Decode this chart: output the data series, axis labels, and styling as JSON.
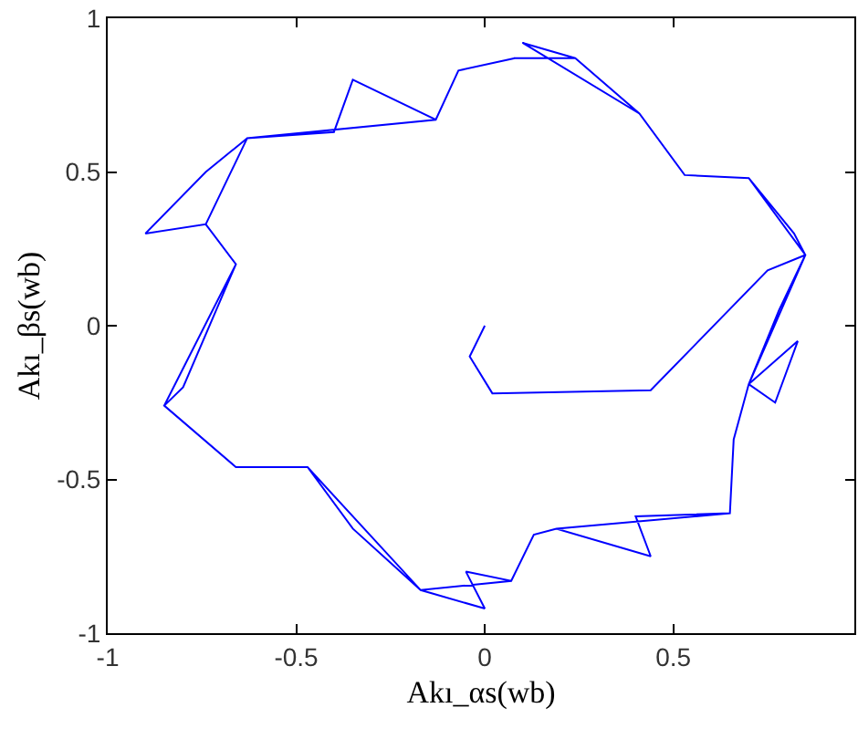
{
  "chart_data": {
    "type": "line",
    "xlabel": "Akı_αs(wb)",
    "ylabel": "Akı_βs(wb)",
    "xlim": [
      -1,
      0.98
    ],
    "ylim": [
      -1,
      1
    ],
    "xticks": [
      -1,
      -0.5,
      0,
      0.5
    ],
    "yticks": [
      -1,
      -0.5,
      0,
      0.5,
      1
    ],
    "marker": "none",
    "line_style": "solid",
    "series": [
      {
        "color": "#0000ff",
        "x": [
          0,
          -0.04,
          0.02,
          0.44,
          0.75,
          0.85,
          0.7,
          0.66,
          0.65,
          0.19,
          0.13,
          0.07,
          -0.17,
          -0.47,
          -0.66,
          -0.85,
          -0.66,
          -0.74,
          -0.63,
          -0.13,
          -0.07,
          0.08,
          0.24,
          0.41,
          0.53,
          0.7,
          0.85,
          0.7,
          0.77,
          0.83,
          0.7,
          0.66,
          0.65,
          0.4,
          0.44,
          0.19,
          0.13,
          0.07,
          -0.05,
          0.0,
          -0.17,
          -0.35,
          -0.47,
          -0.66,
          -0.85,
          -0.8,
          -0.66,
          -0.74,
          -0.9,
          -0.74,
          -0.63,
          -0.4,
          -0.35,
          -0.13,
          -0.07,
          0.08,
          0.24,
          0.1,
          0.41,
          0.53,
          0.7,
          0.82,
          0.85,
          0.7,
          0.66,
          0.65,
          0.19,
          0.13,
          0.07,
          -0.17,
          -0.47,
          -0.66,
          -0.85,
          -0.66,
          -0.74,
          -0.63,
          -0.13,
          -0.07,
          0.08,
          0.24,
          0.41,
          0.53,
          0.7,
          0.85,
          0.78,
          0.7,
          0.66,
          0.65,
          0.19,
          0.13,
          0.07,
          -0.17,
          -0.47,
          -0.66,
          -0.85,
          -0.66,
          -0.74,
          -0.63,
          -0.13,
          -0.07,
          0.08
        ],
        "values": [
          0,
          -0.1,
          -0.22,
          -0.21,
          0.18,
          0.23,
          -0.19,
          -0.37,
          -0.61,
          -0.66,
          -0.68,
          -0.83,
          -0.86,
          -0.46,
          -0.46,
          -0.26,
          0.2,
          0.33,
          0.61,
          0.67,
          0.83,
          0.87,
          0.87,
          0.69,
          0.49,
          0.48,
          0.23,
          -0.19,
          -0.25,
          -0.05,
          -0.19,
          -0.37,
          -0.61,
          -0.62,
          -0.75,
          -0.66,
          -0.68,
          -0.83,
          -0.8,
          -0.92,
          -0.86,
          -0.66,
          -0.46,
          -0.46,
          -0.26,
          -0.2,
          0.2,
          0.33,
          0.3,
          0.5,
          0.61,
          0.63,
          0.8,
          0.67,
          0.83,
          0.87,
          0.87,
          0.92,
          0.69,
          0.49,
          0.48,
          0.3,
          0.23,
          -0.19,
          -0.37,
          -0.61,
          -0.66,
          -0.68,
          -0.83,
          -0.86,
          -0.46,
          -0.46,
          -0.26,
          0.2,
          0.33,
          0.61,
          0.67,
          0.83,
          0.87,
          0.87,
          0.69,
          0.49,
          0.48,
          0.23,
          0.05,
          -0.19,
          -0.37,
          -0.61,
          -0.66,
          -0.68,
          -0.83,
          -0.86,
          -0.46,
          -0.46,
          -0.26,
          0.2,
          0.33,
          0.61,
          0.67,
          0.83,
          0.87
        ]
      }
    ]
  }
}
